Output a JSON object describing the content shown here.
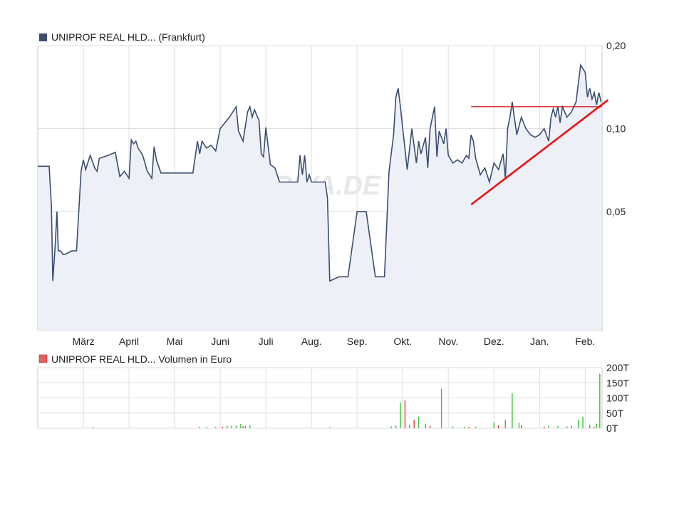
{
  "chart_data": [
    {
      "type": "area",
      "legend": "UNIPROF REAL HLD... (Frankfurt)",
      "legend_color": "#3b4e6e",
      "watermark": "ARIVA.DE",
      "y_tick_labels": [
        "0,20",
        "0,10",
        "0,05"
      ],
      "y_ticks": [
        0.2,
        0.1,
        0.05
      ],
      "y_scale": "log",
      "ylim": [
        0.0185,
        0.2
      ],
      "x_tick_labels": [
        "März",
        "April",
        "Mai",
        "Juni",
        "Juli",
        "Aug.",
        "Sep.",
        "Okt.",
        "Nov.",
        "Dez.",
        "Jan.",
        "Feb."
      ],
      "x_tick_positions": [
        1,
        2,
        3,
        4,
        5,
        6,
        7,
        8,
        9,
        10,
        11,
        12
      ],
      "xlim": [
        0,
        12.37
      ],
      "grid": true,
      "line_color": "#3b4e6e",
      "fill_color": "#eef0f8",
      "series": [
        {
          "x": [
            0.0,
            0.25,
            0.3,
            0.33,
            0.38,
            0.42,
            0.45,
            0.5,
            0.55,
            0.6,
            0.75,
            0.85,
            0.95,
            1.0,
            1.05,
            1.15,
            1.25,
            1.3,
            1.35,
            1.45,
            1.55,
            1.7,
            1.8,
            1.9,
            2.0,
            2.05,
            2.1,
            2.15,
            2.2,
            2.3,
            2.4,
            2.5,
            2.55,
            2.6,
            2.7,
            2.8,
            2.9,
            3.0,
            3.2,
            3.4,
            3.5,
            3.55,
            3.6,
            3.7,
            3.8,
            3.9,
            4.0,
            4.2,
            4.35,
            4.4,
            4.5,
            4.6,
            4.65,
            4.7,
            4.75,
            4.85,
            4.9,
            4.95,
            5.0,
            5.1,
            5.2,
            5.3,
            5.5,
            5.7,
            5.75,
            5.8,
            5.85,
            5.9,
            5.95,
            6.0,
            6.3,
            6.35,
            6.4,
            6.6,
            6.8,
            7.0,
            7.2,
            7.4,
            7.5,
            7.6,
            7.7,
            7.8,
            7.85,
            7.9,
            7.95,
            8.0,
            8.1,
            8.2,
            8.3,
            8.35,
            8.4,
            8.5,
            8.55,
            8.6,
            8.7,
            8.75,
            8.8,
            8.9,
            8.95,
            9.0,
            9.1,
            9.2,
            9.3,
            9.4,
            9.45,
            9.5,
            9.55,
            9.6,
            9.7,
            9.8,
            9.9,
            10.0,
            10.1,
            10.2,
            10.25,
            10.3,
            10.35,
            10.4,
            10.5,
            10.6,
            10.7,
            10.8,
            10.9,
            11.0,
            11.1,
            11.2,
            11.25,
            11.3,
            11.35,
            11.4,
            11.45,
            11.5,
            11.6,
            11.7,
            11.8,
            11.9,
            12.0,
            12.05,
            12.1,
            12.15,
            12.2,
            12.25,
            12.3,
            12.35
          ],
          "y": [
            0.073,
            0.073,
            0.052,
            0.028,
            0.037,
            0.05,
            0.036,
            0.036,
            0.035,
            0.035,
            0.036,
            0.036,
            0.07,
            0.077,
            0.071,
            0.08,
            0.072,
            0.07,
            0.078,
            0.079,
            0.08,
            0.082,
            0.067,
            0.07,
            0.066,
            0.091,
            0.088,
            0.09,
            0.085,
            0.08,
            0.07,
            0.066,
            0.086,
            0.077,
            0.069,
            0.069,
            0.069,
            0.069,
            0.069,
            0.069,
            0.09,
            0.081,
            0.09,
            0.085,
            0.087,
            0.083,
            0.1,
            0.11,
            0.12,
            0.098,
            0.09,
            0.115,
            0.12,
            0.11,
            0.117,
            0.107,
            0.081,
            0.079,
            0.101,
            0.074,
            0.072,
            0.064,
            0.064,
            0.064,
            0.08,
            0.068,
            0.08,
            0.064,
            0.068,
            0.064,
            0.064,
            0.056,
            0.028,
            0.029,
            0.029,
            0.05,
            0.05,
            0.029,
            0.029,
            0.029,
            0.07,
            0.095,
            0.13,
            0.14,
            0.12,
            0.1,
            0.071,
            0.1,
            0.075,
            0.09,
            0.081,
            0.093,
            0.072,
            0.1,
            0.12,
            0.079,
            0.098,
            0.088,
            0.1,
            0.08,
            0.075,
            0.077,
            0.075,
            0.08,
            0.078,
            0.095,
            0.09,
            0.078,
            0.068,
            0.072,
            0.064,
            0.075,
            0.071,
            0.081,
            0.066,
            0.1,
            0.11,
            0.125,
            0.095,
            0.11,
            0.1,
            0.095,
            0.093,
            0.095,
            0.1,
            0.09,
            0.11,
            0.118,
            0.11,
            0.12,
            0.105,
            0.12,
            0.11,
            0.115,
            0.125,
            0.17,
            0.16,
            0.13,
            0.14,
            0.128,
            0.135,
            0.122,
            0.135,
            0.125
          ]
        }
      ],
      "annotations": {
        "horizontal_line": {
          "x": [
            9.5,
            12.37
          ],
          "y": 0.12,
          "color": "#cc0000"
        },
        "trend_line": {
          "x": [
            9.5,
            12.5
          ],
          "y": [
            0.053,
            0.127
          ],
          "color": "#ee1111"
        }
      }
    },
    {
      "type": "bar",
      "legend": "UNIPROF REAL HLD... Volumen in Euro",
      "legend_color": "#e06060",
      "y_tick_labels": [
        "200T",
        "150T",
        "100T",
        "50T",
        "0T"
      ],
      "y_ticks": [
        200,
        150,
        100,
        50,
        0
      ],
      "ylim": [
        0,
        200
      ],
      "xlim": [
        0,
        12.37
      ],
      "grid": true,
      "up_color": "#39c339",
      "down_color": "#e63b3b",
      "volumes_up": [
        {
          "x": 1.22,
          "v": 3
        },
        {
          "x": 3.7,
          "v": 4
        },
        {
          "x": 3.9,
          "v": 4
        },
        {
          "x": 4.15,
          "v": 9
        },
        {
          "x": 4.25,
          "v": 8
        },
        {
          "x": 4.35,
          "v": 9
        },
        {
          "x": 4.45,
          "v": 14
        },
        {
          "x": 4.55,
          "v": 8
        },
        {
          "x": 4.65,
          "v": 10
        },
        {
          "x": 6.4,
          "v": 3
        },
        {
          "x": 7.75,
          "v": 6
        },
        {
          "x": 7.85,
          "v": 9
        },
        {
          "x": 7.95,
          "v": 85
        },
        {
          "x": 8.15,
          "v": 12
        },
        {
          "x": 8.35,
          "v": 38
        },
        {
          "x": 8.5,
          "v": 15
        },
        {
          "x": 8.85,
          "v": 130
        },
        {
          "x": 9.1,
          "v": 6
        },
        {
          "x": 9.35,
          "v": 5
        },
        {
          "x": 9.6,
          "v": 5
        },
        {
          "x": 10.0,
          "v": 20
        },
        {
          "x": 10.25,
          "v": 28
        },
        {
          "x": 10.4,
          "v": 115
        },
        {
          "x": 10.55,
          "v": 18
        },
        {
          "x": 11.2,
          "v": 9
        },
        {
          "x": 11.4,
          "v": 7
        },
        {
          "x": 11.6,
          "v": 6
        },
        {
          "x": 11.85,
          "v": 28
        },
        {
          "x": 11.95,
          "v": 38
        },
        {
          "x": 12.1,
          "v": 12
        },
        {
          "x": 12.25,
          "v": 15
        },
        {
          "x": 12.32,
          "v": 180
        }
      ],
      "volumes_down": [
        {
          "x": 3.55,
          "v": 4
        },
        {
          "x": 4.05,
          "v": 5
        },
        {
          "x": 4.5,
          "v": 6
        },
        {
          "x": 8.05,
          "v": 92
        },
        {
          "x": 8.25,
          "v": 28
        },
        {
          "x": 8.6,
          "v": 8
        },
        {
          "x": 9.45,
          "v": 4
        },
        {
          "x": 10.1,
          "v": 10
        },
        {
          "x": 10.6,
          "v": 10
        },
        {
          "x": 11.1,
          "v": 5
        },
        {
          "x": 11.7,
          "v": 8
        },
        {
          "x": 12.2,
          "v": 4
        }
      ]
    }
  ]
}
